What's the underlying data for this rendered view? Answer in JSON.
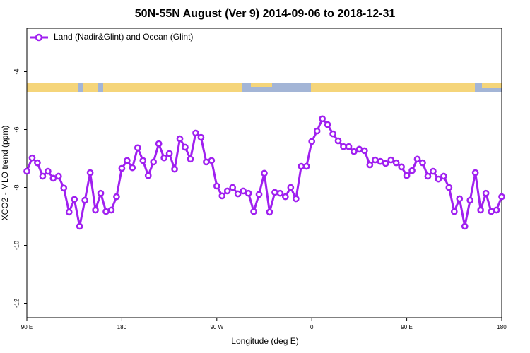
{
  "chart_data": {
    "type": "line",
    "title": "50N-55N August (Ver 9)   2014-09-06 to 2018-12-31",
    "x_label": "Longitude (deg E)",
    "y_label": "XCO2 - MLO trend (ppm)",
    "legend_position": "upper left",
    "xlim": [
      90,
      540
    ],
    "ylim": [
      -12.5,
      -2.5
    ],
    "xticks": [
      {
        "value": 90,
        "label": "90 E"
      },
      {
        "value": 180,
        "label": "180"
      },
      {
        "value": 270,
        "label": "90 W"
      },
      {
        "value": 360,
        "label": "0"
      },
      {
        "value": 450,
        "label": "90 E"
      },
      {
        "value": 540,
        "label": "180"
      }
    ],
    "yticks": [
      -12,
      -10,
      -8,
      -6,
      -4
    ],
    "x": [
      90,
      95,
      100,
      105,
      110,
      115,
      120,
      125,
      130,
      135,
      140,
      145,
      150,
      155,
      160,
      165,
      170,
      175,
      180,
      185,
      190,
      195,
      200,
      205,
      210,
      215,
      220,
      225,
      230,
      235,
      240,
      245,
      250,
      255,
      260,
      265,
      270,
      275,
      280,
      285,
      290,
      295,
      300,
      305,
      310,
      315,
      320,
      325,
      330,
      335,
      340,
      345,
      350,
      355,
      360,
      365,
      370,
      375,
      380,
      385,
      390,
      395,
      400,
      405,
      410,
      415,
      420,
      425,
      430,
      435,
      440,
      445,
      450,
      455,
      460,
      465,
      470,
      475,
      480,
      485,
      490,
      495,
      500,
      505,
      510,
      515,
      520,
      525,
      530,
      535,
      540
    ],
    "series": [
      {
        "name": "Land (Nadir&Glint) and Ocean (Glint)",
        "color": "#a020f0",
        "values": [
          -7.44,
          -6.98,
          -7.15,
          -7.61,
          -7.44,
          -7.68,
          -7.61,
          -8.02,
          -8.85,
          -8.41,
          -9.34,
          -8.44,
          -7.49,
          -8.78,
          -8.2,
          -8.83,
          -8.78,
          -8.32,
          -7.34,
          -7.07,
          -7.32,
          -6.63,
          -7.07,
          -7.59,
          -7.12,
          -6.49,
          -6.98,
          -6.83,
          -7.37,
          -6.32,
          -6.61,
          -7.02,
          -6.12,
          -6.27,
          -7.12,
          -7.07,
          -7.95,
          -8.29,
          -8.12,
          -8.0,
          -8.22,
          -8.12,
          -8.2,
          -8.83,
          -8.24,
          -7.51,
          -8.85,
          -8.17,
          -8.2,
          -8.32,
          -8.0,
          -8.39,
          -7.27,
          -7.27,
          -6.41,
          -6.05,
          -5.63,
          -5.83,
          -6.15,
          -6.39,
          -6.59,
          -6.59,
          -6.76,
          -6.68,
          -6.73,
          -7.22,
          -7.05,
          -7.1,
          -7.17,
          -7.05,
          -7.15,
          -7.29,
          -7.59,
          -7.42,
          -7.02,
          -7.15,
          -7.61,
          -7.44,
          -7.71,
          -7.61,
          -8.0,
          -8.83,
          -8.39,
          -9.34,
          -8.44,
          -7.49,
          -8.78,
          -8.2,
          -8.83,
          -8.78,
          -8.32
        ]
      }
    ]
  }
}
